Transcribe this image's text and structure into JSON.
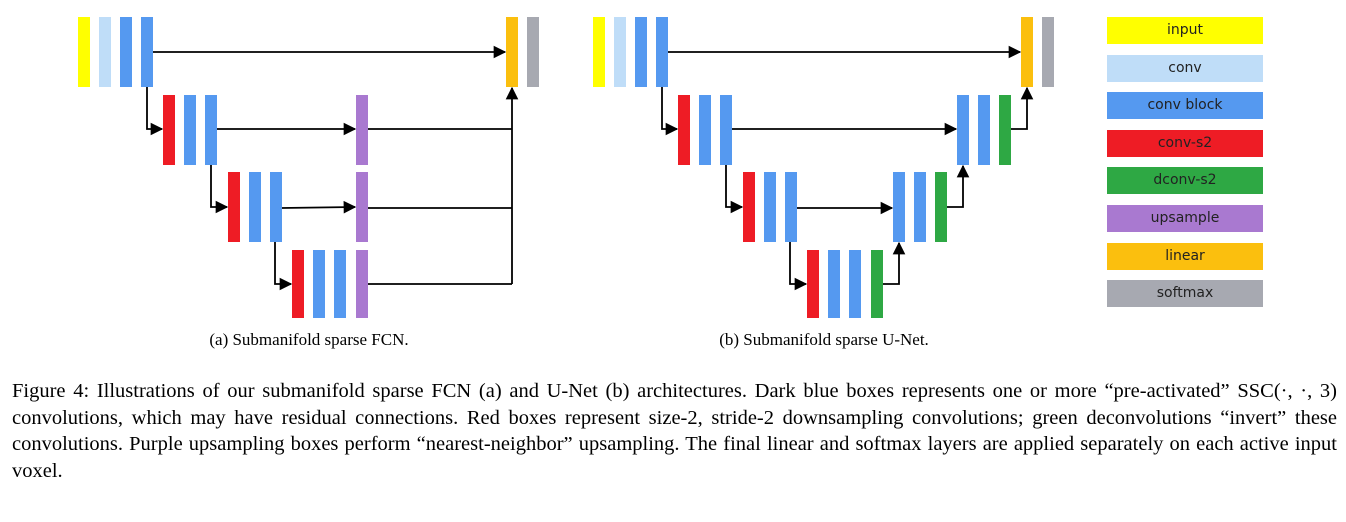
{
  "colors": {
    "input": "#FFFF00",
    "conv": "#BFDDF8",
    "conv_block": "#5599F0",
    "conv_s2": "#EE1C25",
    "dconv_s2": "#2EA844",
    "upsample": "#A979D0",
    "linear": "#FBBF0E",
    "softmax": "#A7A9B1",
    "arrow": "#000000"
  },
  "subcaptions": {
    "a": "(a) Submanifold sparse FCN.",
    "b": "(b) Submanifold sparse U-Net."
  },
  "legend": [
    {
      "key": "input",
      "label": "input"
    },
    {
      "key": "conv",
      "label": "conv"
    },
    {
      "key": "conv_block",
      "label": "conv block"
    },
    {
      "key": "conv_s2",
      "label": "conv-s2"
    },
    {
      "key": "dconv_s2",
      "label": "dconv-s2"
    },
    {
      "key": "upsample",
      "label": "upsample"
    },
    {
      "key": "linear",
      "label": "linear"
    },
    {
      "key": "softmax",
      "label": "softmax"
    }
  ],
  "figure_caption": {
    "part1": "Figure 4: Illustrations of our submanifold sparse FCN (a) and U-Net (b) architectures. Dark blue boxes represents one or more “pre-activated” SSC",
    "math": "(·, ·, 3)",
    "part2": " convolutions, which may have residual connections. Red boxes represent size-2, stride-2 downsampling convolutions; green deconvolutions “invert” these convolutions. Purple upsampling boxes perform “nearest-neighbor” upsampling. The final linear and softmax layers are applied separately on each active input voxel."
  }
}
